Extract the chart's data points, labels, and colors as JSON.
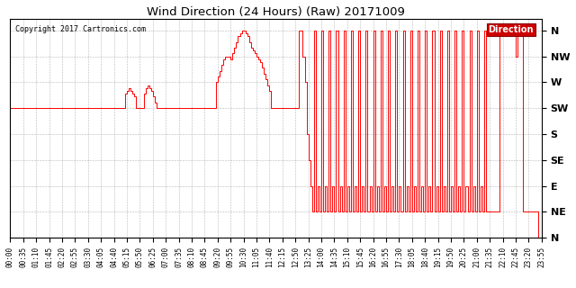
{
  "title": "Wind Direction (24 Hours) (Raw) 20171009",
  "copyright": "Copyright 2017 Cartronics.com",
  "line_color": "#ff0000",
  "bg_color": "#ffffff",
  "grid_color": "#888888",
  "legend_label": "Direction",
  "legend_bg": "#cc0000",
  "legend_text_color": "#ffffff",
  "ytick_labels": [
    "N",
    "NE",
    "E",
    "SE",
    "S",
    "SW",
    "W",
    "NW",
    "N"
  ],
  "ytick_values": [
    0,
    45,
    90,
    135,
    180,
    225,
    270,
    315,
    360
  ],
  "ylim": [
    0,
    380
  ],
  "xlim": [
    0,
    1435
  ],
  "wind_data_minutes": [
    0,
    225,
    5,
    225,
    10,
    225,
    15,
    225,
    20,
    225,
    25,
    225,
    30,
    225,
    35,
    225,
    40,
    225,
    45,
    225,
    50,
    225,
    55,
    225,
    60,
    225,
    65,
    225,
    70,
    225,
    75,
    225,
    80,
    225,
    85,
    225,
    90,
    225,
    95,
    225,
    100,
    225,
    105,
    225,
    110,
    225,
    115,
    225,
    120,
    225,
    125,
    225,
    130,
    225,
    135,
    225,
    140,
    225,
    145,
    225,
    150,
    225,
    155,
    225,
    160,
    225,
    165,
    225,
    170,
    225,
    175,
    225,
    180,
    225,
    185,
    225,
    190,
    225,
    195,
    225,
    200,
    225,
    205,
    225,
    210,
    225,
    215,
    225,
    220,
    225,
    225,
    225,
    230,
    225,
    235,
    225,
    240,
    225,
    245,
    225,
    250,
    225,
    255,
    225,
    260,
    225,
    265,
    225,
    270,
    225,
    275,
    225,
    280,
    225,
    285,
    225,
    290,
    225,
    295,
    225,
    300,
    225,
    305,
    225,
    310,
    250,
    315,
    255,
    320,
    260,
    325,
    255,
    330,
    250,
    335,
    245,
    340,
    225,
    345,
    225,
    350,
    225,
    355,
    225,
    360,
    250,
    365,
    260,
    370,
    265,
    375,
    260,
    380,
    255,
    385,
    245,
    390,
    235,
    395,
    225,
    400,
    225,
    405,
    225,
    410,
    225,
    415,
    225,
    420,
    225,
    425,
    225,
    430,
    225,
    435,
    225,
    440,
    225,
    445,
    225,
    450,
    225,
    455,
    225,
    460,
    225,
    465,
    225,
    470,
    225,
    475,
    225,
    480,
    225,
    485,
    225,
    490,
    225,
    495,
    225,
    500,
    225,
    505,
    225,
    510,
    225,
    515,
    225,
    520,
    225,
    525,
    225,
    530,
    225,
    535,
    225,
    540,
    225,
    545,
    225,
    550,
    225,
    555,
    270,
    560,
    280,
    565,
    290,
    570,
    300,
    575,
    310,
    580,
    315,
    585,
    315,
    590,
    315,
    595,
    310,
    600,
    320,
    605,
    330,
    610,
    340,
    615,
    350,
    620,
    355,
    625,
    360,
    630,
    360,
    635,
    355,
    640,
    350,
    645,
    340,
    650,
    330,
    655,
    325,
    660,
    320,
    665,
    315,
    670,
    310,
    675,
    305,
    680,
    295,
    685,
    285,
    690,
    275,
    695,
    265,
    700,
    255,
    705,
    225,
    710,
    225,
    715,
    225,
    720,
    225,
    725,
    225,
    730,
    225,
    735,
    225,
    740,
    225,
    745,
    225,
    750,
    225,
    755,
    225,
    760,
    225,
    765,
    225,
    770,
    225,
    775,
    225,
    780,
    360,
    785,
    360,
    790,
    315,
    795,
    270,
    800,
    180,
    805,
    135,
    810,
    90,
    815,
    45,
    820,
    360,
    825,
    45,
    830,
    90,
    835,
    45,
    840,
    360,
    845,
    45,
    850,
    90,
    855,
    45,
    860,
    360,
    865,
    45,
    870,
    90,
    875,
    45,
    880,
    360,
    885,
    45,
    890,
    90,
    895,
    45,
    900,
    360,
    905,
    45,
    910,
    90,
    915,
    45,
    920,
    360,
    925,
    45,
    930,
    90,
    935,
    45,
    940,
    360,
    945,
    45,
    950,
    90,
    955,
    45,
    960,
    360,
    965,
    45,
    970,
    90,
    975,
    45,
    980,
    360,
    985,
    45,
    990,
    90,
    995,
    45,
    1000,
    360,
    1005,
    45,
    1010,
    90,
    1015,
    45,
    1020,
    360,
    1025,
    45,
    1030,
    90,
    1035,
    45,
    1040,
    360,
    1045,
    45,
    1050,
    90,
    1055,
    45,
    1060,
    360,
    1065,
    45,
    1070,
    90,
    1075,
    45,
    1080,
    360,
    1085,
    45,
    1090,
    90,
    1095,
    45,
    1100,
    360,
    1105,
    45,
    1110,
    90,
    1115,
    45,
    1120,
    360,
    1125,
    45,
    1130,
    90,
    1135,
    45,
    1140,
    360,
    1145,
    45,
    1150,
    90,
    1155,
    45,
    1160,
    360,
    1165,
    45,
    1170,
    90,
    1175,
    45,
    1180,
    360,
    1185,
    45,
    1190,
    90,
    1195,
    45,
    1200,
    360,
    1205,
    45,
    1210,
    90,
    1215,
    45,
    1220,
    360,
    1225,
    45,
    1230,
    90,
    1235,
    45,
    1240,
    360,
    1245,
    45,
    1250,
    90,
    1255,
    45,
    1260,
    360,
    1265,
    45,
    1270,
    90,
    1275,
    45,
    1280,
    360,
    1285,
    45,
    1290,
    45,
    1295,
    45,
    1300,
    45,
    1305,
    45,
    1310,
    45,
    1315,
    45,
    1320,
    360,
    1325,
    360,
    1330,
    360,
    1335,
    360,
    1340,
    360,
    1345,
    360,
    1350,
    360,
    1355,
    360,
    1360,
    360,
    1365,
    315,
    1370,
    360,
    1375,
    360,
    1380,
    360,
    1385,
    45,
    1390,
    45,
    1395,
    45,
    1400,
    45,
    1405,
    45,
    1410,
    45,
    1415,
    45,
    1420,
    45,
    1425,
    0,
    1430,
    0,
    1435,
    0
  ]
}
